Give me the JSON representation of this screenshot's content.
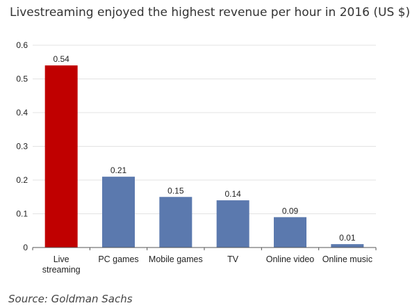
{
  "chart_data": {
    "type": "bar",
    "title": "Livestreaming enjoyed the highest revenue per hour in 2016 (US $)",
    "categories": [
      "Live streaming",
      "PC games",
      "Mobile games",
      "TV",
      "Online video",
      "Online music"
    ],
    "category_label_lines": [
      [
        "Live",
        "streaming"
      ],
      [
        "PC games"
      ],
      [
        "Mobile games"
      ],
      [
        "TV"
      ],
      [
        "Online video"
      ],
      [
        "Online music"
      ]
    ],
    "values": [
      0.54,
      0.21,
      0.15,
      0.14,
      0.09,
      0.01
    ],
    "data_labels": [
      "0.54",
      "0.21",
      "0.15",
      "0.14",
      "0.09",
      "0.01"
    ],
    "colors": [
      "#c00000",
      "#5b79ae",
      "#5b79ae",
      "#5b79ae",
      "#5b79ae",
      "#5b79ae"
    ],
    "xlabel": "",
    "ylabel": "",
    "ylim": [
      0,
      0.6
    ],
    "yticks": [
      0,
      0.1,
      0.2,
      0.3,
      0.4,
      0.5,
      0.6
    ],
    "ytick_labels": [
      "0",
      "0.1",
      "0.2",
      "0.3",
      "0.4",
      "0.5",
      "0.6"
    ],
    "grid": true,
    "legend": "none"
  },
  "source": "Source: Goldman Sachs"
}
